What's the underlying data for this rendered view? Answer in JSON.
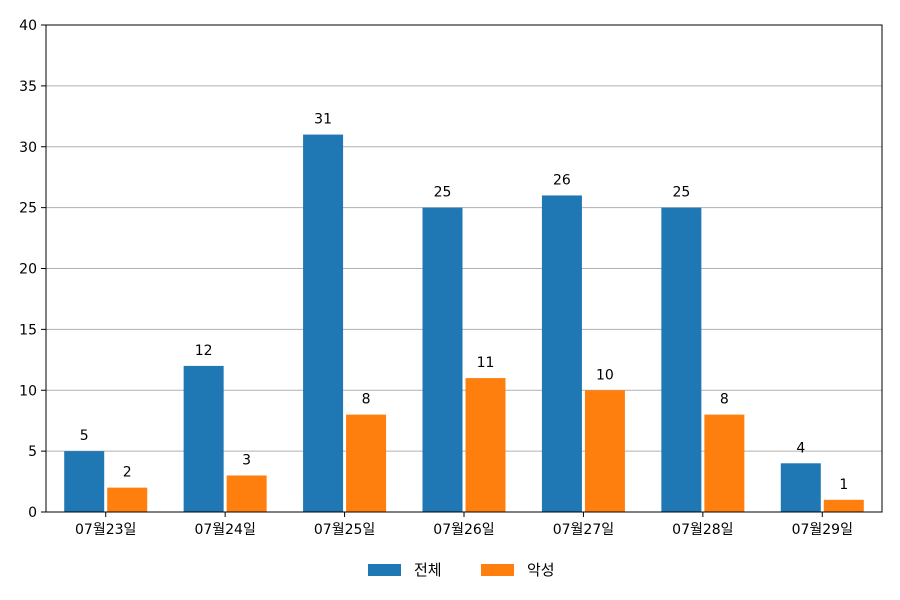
{
  "chart_data": {
    "type": "bar",
    "categories": [
      "07월23일",
      "07월24일",
      "07월25일",
      "07월26일",
      "07월27일",
      "07월28일",
      "07월29일"
    ],
    "series": [
      {
        "name": "전체",
        "values": [
          5,
          12,
          31,
          25,
          26,
          25,
          4
        ],
        "color": "#1f77b4"
      },
      {
        "name": "악성",
        "values": [
          2,
          3,
          8,
          11,
          10,
          8,
          1
        ],
        "color": "#ff7f0e"
      }
    ],
    "ylim": [
      0,
      40
    ],
    "yticks": [
      0,
      5,
      10,
      15,
      20,
      25,
      30,
      35,
      40
    ],
    "grid": "horizontal",
    "legend_position": "bottom-center",
    "data_labels": true
  }
}
